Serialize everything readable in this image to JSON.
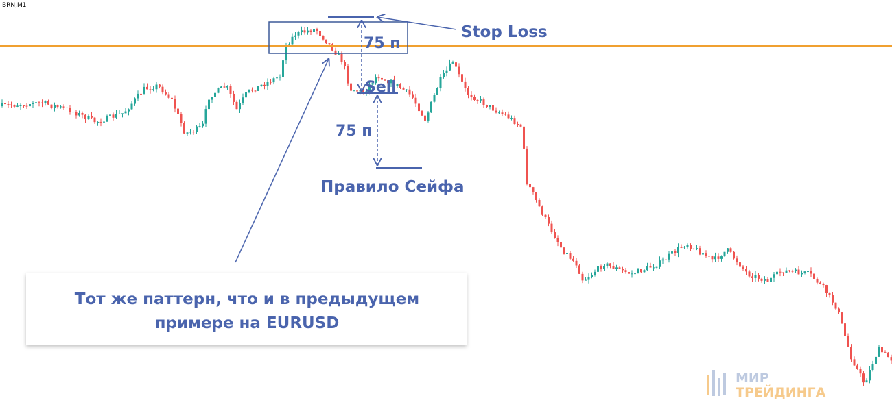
{
  "symbol": "BRN,M1",
  "annotations": {
    "stop_loss": "Stop Loss",
    "distance_top": "75 п",
    "sell": "Sell",
    "distance_bottom": "75 п",
    "rule": "Правило Сейфа"
  },
  "callout": {
    "lines": [
      "Тот же паттерн, что и в предыдущем",
      "примере на EURUSD"
    ]
  },
  "logo": {
    "line1": "МИР",
    "line2": "ТРЕЙДИНГА"
  }
}
